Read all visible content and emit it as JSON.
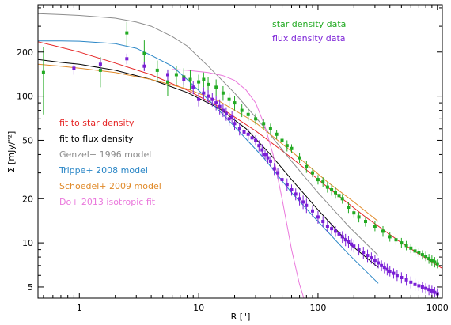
{
  "chart_data": {
    "type": "scatter",
    "title": "",
    "xlabel": "R [\"]",
    "ylabel": "Σ [mJy/\"²]",
    "x_scale": "log",
    "y_scale": "log",
    "xlim": [
      0.45,
      1100
    ],
    "ylim": [
      4.2,
      420
    ],
    "x_ticks": [
      1,
      10,
      100,
      1000
    ],
    "x_tick_labels": [
      "1",
      "10",
      "100",
      "1000"
    ],
    "y_ticks": [
      5,
      10,
      20,
      50,
      100,
      200
    ],
    "y_tick_labels": [
      "5",
      "10",
      "20",
      "50",
      "100",
      "200"
    ],
    "grid": false,
    "legend_placement": "top-right and middle-left",
    "legend": {
      "star_density_data": "star density data",
      "flux_density_data": "flux density data",
      "fit_star": "fit to star density",
      "fit_flux": "fit to flux density",
      "genzel": "Genzel+ 1996 model",
      "trippe": "Trippe+ 2008 model",
      "schoedel": "Schoedel+ 2009 model",
      "do": "Do+ 2013 isotropic fit"
    },
    "colors": {
      "star_density": "#22aa22",
      "flux_density": "#7a1fd6",
      "fit_star": "#e52222",
      "fit_flux": "#000000",
      "genzel": "#8c8c8c",
      "trippe": "#2a86c6",
      "schoedel": "#e08a2a",
      "do": "#ea78dc"
    },
    "series": [
      {
        "name": "star density data",
        "kind": "points",
        "x": [
          0.5,
          1.5,
          2.5,
          3.5,
          4.5,
          5.5,
          6.5,
          7.5,
          8.5,
          10,
          11,
          12,
          14,
          16,
          18,
          20,
          23,
          26,
          30,
          35,
          40,
          45,
          50,
          55,
          60,
          70,
          80,
          90,
          100,
          110,
          120,
          130,
          140,
          150,
          160,
          180,
          200,
          220,
          250,
          300,
          350,
          400,
          450,
          500,
          550,
          600,
          650,
          700,
          750,
          800,
          850,
          900,
          950,
          1000
        ],
        "y": [
          145,
          150,
          270,
          195,
          150,
          125,
          140,
          135,
          130,
          125,
          130,
          120,
          115,
          105,
          95,
          90,
          80,
          75,
          70,
          65,
          60,
          55,
          50,
          46,
          44,
          38,
          33,
          30,
          27,
          26,
          24,
          23,
          22,
          21,
          20,
          17.5,
          16,
          15,
          14,
          13,
          12,
          11,
          10.5,
          10,
          9.6,
          9.2,
          8.8,
          8.6,
          8.3,
          8.1,
          7.8,
          7.6,
          7.4,
          7.2
        ],
        "err": [
          70,
          35,
          50,
          45,
          25,
          25,
          20,
          20,
          20,
          15,
          15,
          15,
          15,
          12,
          10,
          10,
          8,
          7,
          6,
          5,
          5,
          4,
          4,
          4,
          3,
          3,
          3,
          2,
          2,
          2,
          2,
          2,
          2,
          2,
          1.5,
          1.5,
          1.2,
          1.2,
          1.1,
          1,
          1,
          0.8,
          0.8,
          0.8,
          0.7,
          0.7,
          0.7,
          0.6,
          0.6,
          0.6,
          0.6,
          0.6,
          0.6,
          0.5
        ]
      },
      {
        "name": "flux density data",
        "kind": "points",
        "x": [
          0.9,
          1.5,
          2.5,
          3.5,
          5.5,
          7.5,
          9,
          10,
          11,
          12,
          13,
          14,
          15,
          16,
          17,
          18,
          19,
          20,
          22,
          24,
          26,
          28,
          30,
          32,
          34,
          36,
          38,
          40,
          43,
          46,
          50,
          55,
          60,
          65,
          70,
          75,
          80,
          90,
          100,
          110,
          120,
          130,
          140,
          150,
          160,
          170,
          180,
          190,
          200,
          220,
          240,
          260,
          280,
          300,
          320,
          340,
          360,
          380,
          400,
          430,
          460,
          500,
          550,
          600,
          650,
          700,
          750,
          800,
          850,
          900,
          950,
          1000
        ],
        "y": [
          155,
          165,
          180,
          160,
          140,
          130,
          115,
          95,
          105,
          100,
          95,
          90,
          85,
          80,
          76,
          70,
          72,
          65,
          60,
          57,
          55,
          52,
          50,
          46,
          43,
          40,
          38,
          36,
          32,
          30,
          27,
          25,
          23,
          21.5,
          20,
          19,
          18,
          16.5,
          15,
          14,
          13,
          12.5,
          12,
          11.5,
          11,
          10.5,
          10.2,
          9.8,
          9.5,
          9,
          8.6,
          8.2,
          7.9,
          7.6,
          7.3,
          7,
          6.8,
          6.6,
          6.4,
          6.2,
          6,
          5.8,
          5.6,
          5.4,
          5.2,
          5.1,
          5,
          4.9,
          4.8,
          4.7,
          4.6,
          4.5
        ],
        "err": [
          15,
          15,
          15,
          12,
          12,
          10,
          12,
          10,
          10,
          10,
          10,
          10,
          10,
          8,
          8,
          7,
          7,
          6,
          6,
          5,
          5,
          5,
          4,
          4,
          4,
          3,
          3,
          3,
          3,
          2.5,
          2.5,
          2.5,
          2,
          2,
          2,
          2,
          2,
          1.5,
          1.5,
          1.2,
          1.2,
          1.1,
          1,
          1,
          1,
          1,
          0.9,
          0.9,
          0.9,
          0.8,
          0.8,
          0.8,
          0.7,
          0.7,
          0.6,
          0.6,
          0.6,
          0.6,
          0.5,
          0.5,
          0.5,
          0.5,
          0.5,
          0.5,
          0.5,
          0.4,
          0.4,
          0.4,
          0.4,
          0.4,
          0.4,
          0.4
        ]
      },
      {
        "name": "fit to star density",
        "kind": "line",
        "x": [
          0.45,
          0.7,
          1,
          2,
          4,
          8,
          15,
          30,
          60,
          120,
          250,
          500,
          1000,
          1100
        ],
        "y": [
          235,
          215,
          200,
          168,
          140,
          110,
          84,
          58,
          38,
          24,
          15,
          10,
          7,
          6.7
        ]
      },
      {
        "name": "fit to flux density",
        "kind": "line",
        "x": [
          0.45,
          0.7,
          1,
          2,
          4,
          8,
          15,
          25,
          40,
          60,
          100,
          180,
          320
        ],
        "y": [
          178,
          170,
          165,
          150,
          130,
          106,
          82,
          60,
          40,
          27,
          16.8,
          10,
          6.8
        ]
      },
      {
        "name": "Genzel+ 1996 model",
        "kind": "line",
        "x": [
          0.45,
          0.7,
          1,
          2,
          3,
          4,
          6,
          8,
          12,
          20,
          35,
          60,
          100,
          180,
          320
        ],
        "y": [
          365,
          360,
          355,
          340,
          320,
          300,
          255,
          220,
          160,
          105,
          62,
          36,
          22,
          13,
          8.2
        ]
      },
      {
        "name": "Trippe+ 2008 model",
        "kind": "line",
        "x": [
          0.45,
          0.7,
          1,
          2,
          3,
          4,
          6,
          8,
          12,
          20,
          35,
          60,
          100,
          180,
          320
        ],
        "y": [
          238,
          238,
          237,
          228,
          212,
          190,
          160,
          130,
          95,
          62,
          38,
          22,
          14,
          8.4,
          5.3
        ]
      },
      {
        "name": "Schoedel+ 2009 model",
        "kind": "line",
        "x": [
          0.45,
          0.7,
          1,
          2,
          4,
          8,
          15,
          30,
          60,
          120,
          200,
          320
        ],
        "y": [
          165,
          160,
          155,
          145,
          130,
          112,
          92,
          66,
          42,
          26,
          19,
          14
        ]
      },
      {
        "name": "Do+ 2013 isotropic fit",
        "kind": "line",
        "x": [
          6,
          8,
          12,
          16,
          20,
          25,
          30,
          36,
          42,
          50,
          60,
          70,
          76
        ],
        "y": [
          152,
          150,
          145,
          138,
          128,
          110,
          90,
          62,
          40,
          20,
          9,
          5.2,
          4.2
        ]
      }
    ]
  }
}
